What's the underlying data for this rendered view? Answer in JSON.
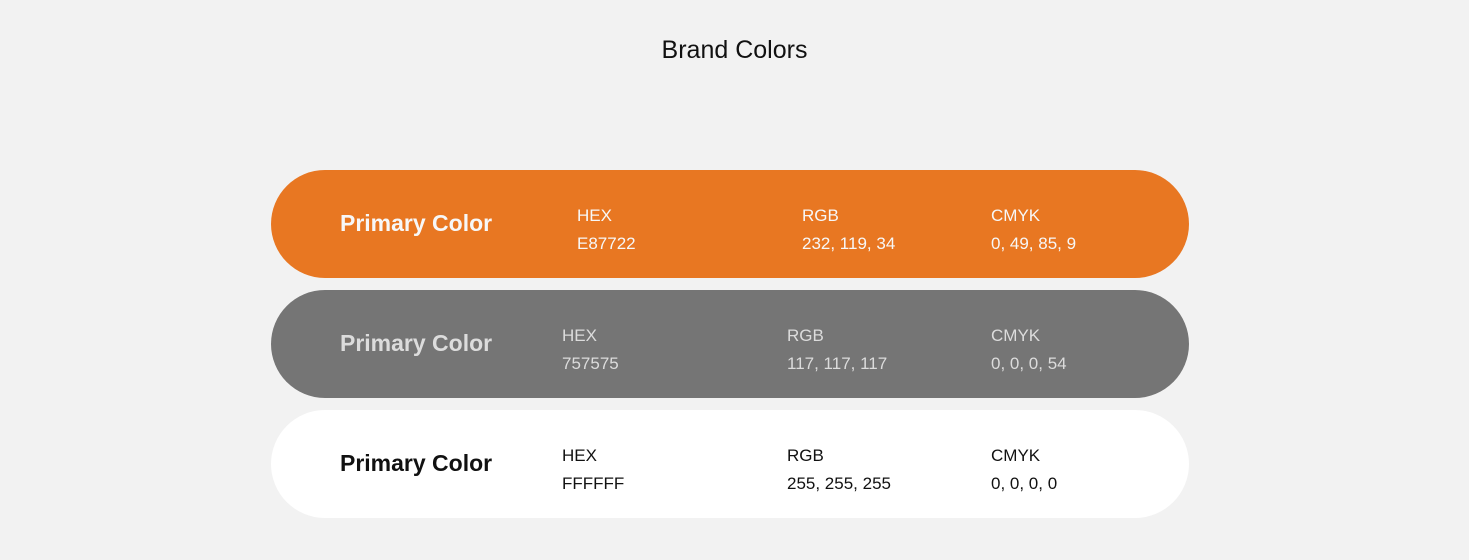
{
  "title": "Brand Colors",
  "rows": [
    {
      "label": "Primary Color",
      "hex_label": "HEX",
      "hex": "E87722",
      "rgb_label": "RGB",
      "rgb": "232, 119, 34",
      "cmyk_label": "CMYK",
      "cmyk": "0, 49, 85, 9",
      "background": "#E87722",
      "text_color": "#F7F7F7"
    },
    {
      "label": "Primary Color",
      "hex_label": "HEX",
      "hex": "757575",
      "rgb_label": "RGB",
      "rgb": "117, 117, 117",
      "cmyk_label": "CMYK",
      "cmyk": "0, 0, 0, 54",
      "background": "#757575",
      "text_color": "#DCDCDC"
    },
    {
      "label": "Primary Color",
      "hex_label": "HEX",
      "hex": "FFFFFF",
      "rgb_label": "RGB",
      "rgb": "255, 255, 255",
      "cmyk_label": "CMYK",
      "cmyk": "0, 0, 0, 0",
      "background": "#FFFFFF",
      "text_color": "#111111"
    }
  ]
}
